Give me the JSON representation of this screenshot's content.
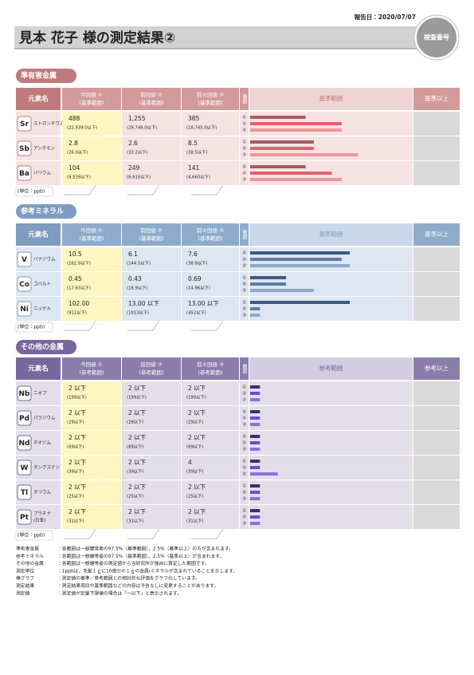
{
  "header": {
    "date": "報告日：2020/07/07",
    "title": "見本 花子 様の測定結果②",
    "badge": "検査番号"
  },
  "history_marks": [
    "①",
    "②",
    "③"
  ],
  "sections": [
    {
      "title": "準有害金属",
      "colors": {
        "dark": "#c07a7c",
        "mid": "#d39a9b",
        "light": "#efd4d5",
        "row": "#f5e3e4",
        "bars": [
          "#a55c5e",
          "#e5606b",
          "#f0959a"
        ]
      },
      "headers": {
        "name": "元素名",
        "current": [
          "今回値 ①",
          "(基準範囲)"
        ],
        "prev": [
          "前回値 ②",
          "(基準範囲)"
        ],
        "prev2": [
          "前々回値 ③",
          "(基準範囲)"
        ],
        "history": "履歴",
        "range": "基準範囲",
        "above": "基準以上"
      },
      "rows": [
        {
          "symbol": "Sr",
          "name": [
            "ストロンチウム"
          ],
          "current": {
            "value": "488",
            "range": "(22,939.0以下)"
          },
          "prev": {
            "value": "1,255",
            "range": "(29,746.0以下)"
          },
          "prev2": {
            "value": "385",
            "range": "(18,745.0以下)"
          },
          "bars": [
            34,
            56,
            56
          ]
        },
        {
          "symbol": "Sb",
          "name": [
            "アンチモン"
          ],
          "current": {
            "value": "2.8",
            "range": "(26.0以下)"
          },
          "prev": {
            "value": "2.6",
            "range": "(33.2以下)"
          },
          "prev2": {
            "value": "8.5",
            "range": "(38.5以下)"
          },
          "bars": [
            39,
            39,
            66
          ]
        },
        {
          "symbol": "Ba",
          "name": [
            "バリウム"
          ],
          "current": {
            "value": "104",
            "range": "(9,539以下)"
          },
          "prev": {
            "value": "249",
            "range": "(8,918以下)"
          },
          "prev2": {
            "value": "141",
            "range": "(4,660以下)"
          },
          "bars": [
            34,
            50,
            56
          ]
        }
      ],
      "unit": "(単位：ppb)"
    },
    {
      "title": "参考ミネラル",
      "colors": {
        "dark": "#7d9cc0",
        "mid": "#8fabcb",
        "light": "#c9d8ea",
        "row": "#dde6f1",
        "bars": [
          "#3d5a82",
          "#5b7ca8",
          "#8ea8c9"
        ]
      },
      "headers": {
        "name": "元素名",
        "current": [
          "今回値 ①",
          "(基準範囲)"
        ],
        "prev": [
          "前回値 ②",
          "(基準範囲)"
        ],
        "prev2": [
          "前々回値 ③",
          "(基準範囲)"
        ],
        "history": "履歴",
        "range": "基準範囲",
        "above": "基準以上"
      },
      "rows": [
        {
          "symbol": "V",
          "name": [
            "バナジウム"
          ],
          "current": {
            "value": "10.5",
            "range": "(182.9以下)"
          },
          "prev": {
            "value": "6.1",
            "range": "(144.5以下)"
          },
          "prev2": {
            "value": "7.6",
            "range": "(38.8以下)"
          },
          "bars": [
            61,
            56,
            61
          ]
        },
        {
          "symbol": "Co",
          "name": [
            "コバルト"
          ],
          "current": {
            "value": "0.45",
            "range": "(17.63以下)"
          },
          "prev": {
            "value": "0.43",
            "range": "(18.9以下)"
          },
          "prev2": {
            "value": "0.69",
            "range": "(14.86以下)"
          },
          "bars": [
            22,
            22,
            39
          ]
        },
        {
          "symbol": "Ni",
          "name": [
            "ニッケル"
          ],
          "current": {
            "value": "102.00",
            "range": "(912以下)"
          },
          "prev": {
            "value": "13.00 以下",
            "range": "(1013以下)"
          },
          "prev2": {
            "value": "13.00 以下",
            "range": "(452以下)"
          },
          "bars": [
            61,
            6,
            6
          ]
        }
      ],
      "unit": "(単位：ppb)"
    },
    {
      "title": "その他の金属",
      "colors": {
        "dark": "#76689c",
        "mid": "#8a7dac",
        "light": "#d2cde0",
        "row": "#e2dfeb",
        "bars": [
          "#3a2f6e",
          "#6a4fd0",
          "#8a70da"
        ]
      },
      "headers": {
        "name": "元素名",
        "current": [
          "今回値 ①",
          "(参考範囲)"
        ],
        "prev": [
          "前回値 ②",
          "(参考範囲)"
        ],
        "prev2": [
          "前々回値 ③",
          "(参考範囲)"
        ],
        "history": "履歴",
        "range": "参考範囲",
        "above": "参考以上"
      },
      "rows": [
        {
          "symbol": "Nb",
          "name": [
            "ニオブ"
          ],
          "current": {
            "value": "2 以下",
            "range": "(199以下)"
          },
          "prev": {
            "value": "2 以下",
            "range": "(199以下)"
          },
          "prev2": {
            "value": "2 以下",
            "range": "(199以下)"
          },
          "bars": [
            6,
            6,
            6
          ]
        },
        {
          "symbol": "Pd",
          "name": [
            "パラジウム"
          ],
          "current": {
            "value": "2 以下",
            "range": "(29以下)"
          },
          "prev": {
            "value": "2 以下",
            "range": "(29以下)"
          },
          "prev2": {
            "value": "2 以下",
            "range": "(29以下)"
          },
          "bars": [
            6,
            6,
            6
          ]
        },
        {
          "symbol": "Nd",
          "name": [
            "ネオジム"
          ],
          "current": {
            "value": "2 以下",
            "range": "(69以下)"
          },
          "prev": {
            "value": "2 以下",
            "range": "(69以下)"
          },
          "prev2": {
            "value": "2 以下",
            "range": "(69以下)"
          },
          "bars": [
            6,
            6,
            6
          ]
        },
        {
          "symbol": "W",
          "name": [
            "タングステン"
          ],
          "current": {
            "value": "2 以下",
            "range": "(39以下)"
          },
          "prev": {
            "value": "2 以下",
            "range": "(39以下)"
          },
          "prev2": {
            "value": "4",
            "range": "(39以下)"
          },
          "bars": [
            6,
            6,
            17
          ]
        },
        {
          "symbol": "Tl",
          "name": [
            "タリウム"
          ],
          "current": {
            "value": "2 以下",
            "range": "(25以下)"
          },
          "prev": {
            "value": "2 以下",
            "range": "(25以下)"
          },
          "prev2": {
            "value": "2 以下",
            "range": "(25以下)"
          },
          "bars": [
            6,
            6,
            6
          ]
        },
        {
          "symbol": "Pt",
          "name": [
            "プラチナ",
            "(白金)"
          ],
          "current": {
            "value": "2 以下",
            "range": "(31以下)"
          },
          "prev": {
            "value": "2 以下",
            "range": "(31以下)"
          },
          "prev2": {
            "value": "2 以下",
            "range": "(31以下)"
          },
          "bars": [
            6,
            6,
            6
          ]
        }
      ],
      "unit": "(単位：ppb)"
    }
  ],
  "notes": [
    [
      "準有害金属",
      "：各範囲は一般健常者の97.5%（基準範囲）、2.5%（基準以上）の方が含まれます。"
    ],
    [
      "参考ミネラル",
      "：各範囲は一般健常者の97.5%（基準範囲）、2.5%（基準以上）が含まれます。"
    ],
    [
      "その他の金属",
      "：各範囲は一般健常者の測定値から当研究所が独自に算定した範囲です。"
    ],
    [
      "測定単位",
      "：1ppbは、毛髪１ｇに10億分の１ｇの金属・ミネラルが含まれていることを示します。"
    ],
    [
      "棒グラフ",
      "：測定値の基準／参考範囲との相対的な評価をグラフ化しています。"
    ],
    [
      "測定結果",
      "：測定結果項目や基準範囲などの内容は予告なしに変更することがあります。"
    ],
    [
      "測定値",
      "：測定値が定量下限値の場合は「～以下」と表示されます。"
    ]
  ]
}
